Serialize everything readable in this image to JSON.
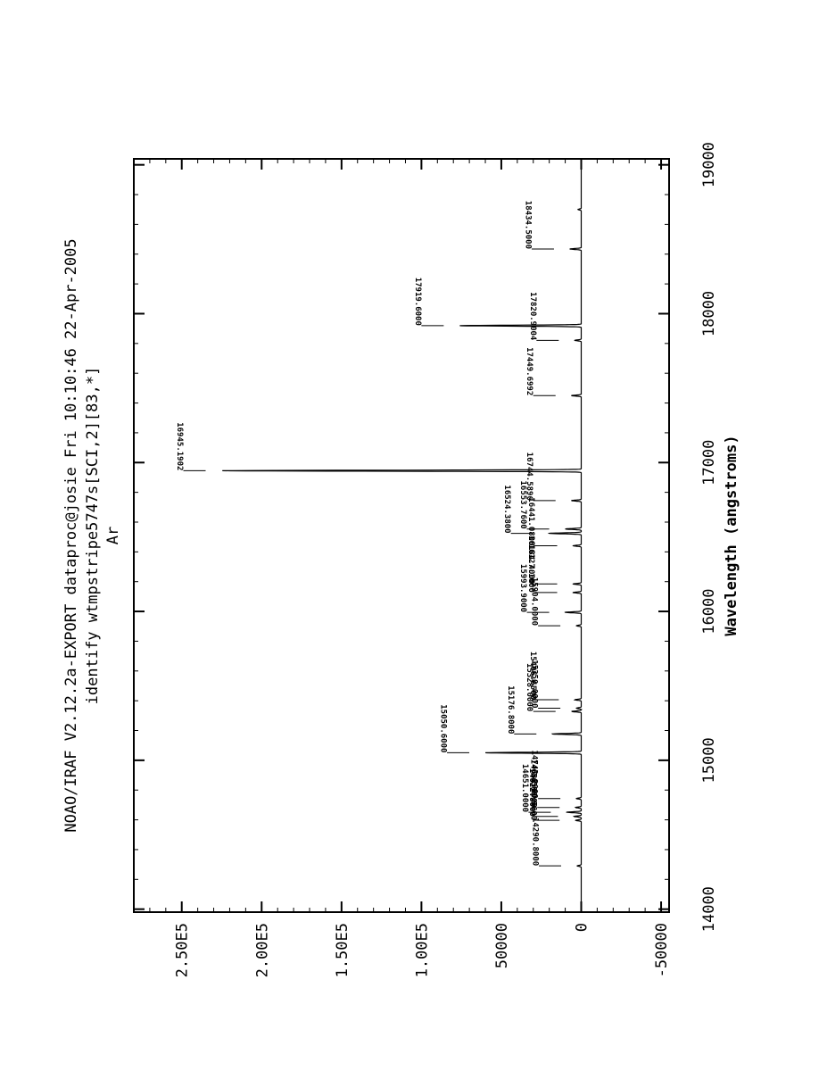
{
  "header": {
    "line1": "NOAO/IRAF V2.12.2a-EXPORT dataproc@josie Fri 10:10:46 22-Apr-2005",
    "line2": "identify wtmpstripe5747s[SCI,2][83,*]",
    "line3": "Ar"
  },
  "chart_data": {
    "type": "line",
    "xlabel": "Wavelength (angstroms)",
    "ylabel": "",
    "xlim": [
      13980,
      19040
    ],
    "ylim": [
      -55000,
      280000
    ],
    "x_ticks": [
      14000,
      15000,
      16000,
      17000,
      18000,
      19000
    ],
    "x_tick_labels": [
      "14000",
      "15000",
      "16000",
      "17000",
      "18000",
      "19000"
    ],
    "y_ticks": [
      -50000,
      0,
      50000,
      100000,
      150000,
      200000,
      250000
    ],
    "y_tick_labels": [
      "-50000",
      "0",
      "50000",
      "1.00E5",
      "1.50E5",
      "2.00E5",
      "2.50E5"
    ],
    "series": [
      {
        "peaks": [
          {
            "x": 14290.8,
            "y": 2500
          },
          {
            "x": 14596.56,
            "y": 3500
          },
          {
            "x": 14622.8,
            "y": 4500
          },
          {
            "x": 14651.0,
            "y": 9000
          },
          {
            "x": 14683.0,
            "y": 3500
          },
          {
            "x": 14743.2,
            "y": 3000
          },
          {
            "x": 15050.6,
            "y": 60000
          },
          {
            "x": 15176.8,
            "y": 18000
          },
          {
            "x": 15328.0,
            "y": 6000
          },
          {
            "x": 15350.0,
            "y": 3000
          },
          {
            "x": 15406.65,
            "y": 4000
          },
          {
            "x": 15904.0,
            "y": 3000
          },
          {
            "x": 15993.9,
            "y": 10000
          },
          {
            "x": 16127.1,
            "y": 5000
          },
          {
            "x": 16184.4,
            "y": 5000
          },
          {
            "x": 16441.08,
            "y": 5000
          },
          {
            "x": 16524.38,
            "y": 20000
          },
          {
            "x": 16553.76,
            "y": 10000
          },
          {
            "x": 16744.5896,
            "y": 6000
          },
          {
            "x": 16945.1902,
            "y": 225000
          },
          {
            "x": 17449.6992,
            "y": 6000
          },
          {
            "x": 17820.9004,
            "y": 4000
          },
          {
            "x": 17919.6,
            "y": 76000
          },
          {
            "x": 18434.5,
            "y": 7000
          },
          {
            "x": 18700.0,
            "y": 2000
          }
        ]
      }
    ],
    "annotations": [
      {
        "x": 14290.8,
        "label": "14290.8000"
      },
      {
        "x": 14596.56,
        "label": "14596.5600"
      },
      {
        "x": 14622.8,
        "label": "14622.8000"
      },
      {
        "x": 14651.0,
        "label": "14651.0000"
      },
      {
        "x": 14683.0,
        "label": "14683.0000"
      },
      {
        "x": 14743.2,
        "label": "14743.2000"
      },
      {
        "x": 15050.6,
        "label": "15050.6000"
      },
      {
        "x": 15176.8,
        "label": "15176.8000"
      },
      {
        "x": 15328.0,
        "label": "15328.0000"
      },
      {
        "x": 15350.0,
        "label": "15350.0000"
      },
      {
        "x": 15406.65,
        "label": "15406.6500"
      },
      {
        "x": 15904.0,
        "label": "15904.0000"
      },
      {
        "x": 15993.9,
        "label": "15993.9000"
      },
      {
        "x": 16127.1,
        "label": "16127.1000"
      },
      {
        "x": 16184.4,
        "label": "16184.4000"
      },
      {
        "x": 16441.08,
        "label": "16441.0800"
      },
      {
        "x": 16524.38,
        "label": "16524.3800"
      },
      {
        "x": 16553.76,
        "label": "16553.7600"
      },
      {
        "x": 16744.5896,
        "label": "16744.5896"
      },
      {
        "x": 16945.1902,
        "label": "16945.1902"
      },
      {
        "x": 17449.6992,
        "label": "17449.6992"
      },
      {
        "x": 17820.9004,
        "label": "17820.9004"
      },
      {
        "x": 17919.6,
        "label": "17919.6000"
      },
      {
        "x": 18434.5,
        "label": "18434.5000"
      }
    ]
  }
}
